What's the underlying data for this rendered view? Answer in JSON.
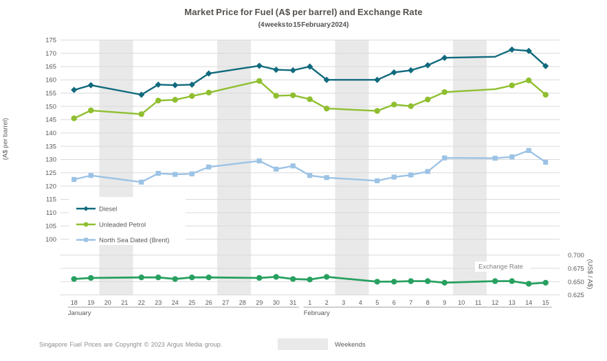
{
  "footer": {
    "copyright": "Singapore Fuel Prices are Copyright © 2023 Argus Media group.",
    "weekends_label": "Weekends",
    "weekend_swatch_color": "#e9e9e9"
  },
  "chart_data": {
    "type": "line",
    "title": "Market Price for Fuel (A$ per barrel) and Exchange Rate",
    "subtitle": "(4 weeks to 15 February 2024)",
    "grid": true,
    "weekend_band_color": "#e9e9e9",
    "gridline_color": "#d9d9d9",
    "axis_text_color": "#595959",
    "annotation_exchange_rate": "Exchange Rate",
    "months": [
      {
        "name": "January",
        "days": [
          18,
          19,
          20,
          21,
          22,
          23,
          24,
          25,
          26,
          27,
          28,
          29,
          30,
          31
        ],
        "weekend_days": [
          20,
          21,
          27,
          28
        ]
      },
      {
        "name": "February",
        "days": [
          1,
          2,
          3,
          4,
          5,
          6,
          7,
          8,
          9,
          10,
          11,
          12,
          13,
          14,
          15
        ],
        "weekend_days": [
          3,
          4,
          10,
          11
        ]
      }
    ],
    "y_left": {
      "label": "(A$ per barrel)",
      "min": 100,
      "max": 175,
      "step": 5,
      "ticks": [
        175,
        170,
        165,
        160,
        155,
        150,
        145,
        140,
        135,
        130,
        125,
        120,
        115,
        110,
        105,
        100
      ]
    },
    "y_right": {
      "label": "(US$ / A$)",
      "min": 0.625,
      "max": 0.7,
      "step": 0.025,
      "ticks": [
        "0.700",
        "0.675",
        "0.650",
        "0.625"
      ]
    },
    "x_days": [
      "Jan 18",
      "Jan 19",
      "Jan 22",
      "Jan 23",
      "Jan 24",
      "Jan 25",
      "Jan 26",
      "Jan 29",
      "Jan 30",
      "Jan 31",
      "Feb 1",
      "Feb 2",
      "Feb 5",
      "Feb 6",
      "Feb 7",
      "Feb 8",
      "Feb 9",
      "Feb 12",
      "Feb 13",
      "Feb 14",
      "Feb 15"
    ],
    "series": [
      {
        "name": "Diesel",
        "color": "#106a7d",
        "marker": "diamond",
        "axis": "left",
        "no_marker_days": [
          "Feb 12"
        ],
        "values": [
          156.2,
          158.0,
          154.4,
          158.2,
          158.0,
          158.2,
          162.4,
          165.3,
          163.8,
          163.6,
          165.0,
          160.0,
          160.0,
          162.8,
          163.6,
          165.5,
          168.3,
          168.7,
          171.4,
          170.9,
          165.2
        ]
      },
      {
        "name": "Unleaded Petrol",
        "color": "#8fbf2f",
        "marker": "circle",
        "axis": "left",
        "no_marker_days": [
          "Feb 12"
        ],
        "values": [
          145.5,
          148.5,
          147.1,
          152.2,
          152.5,
          153.9,
          155.2,
          159.6,
          154.0,
          154.2,
          152.7,
          149.2,
          148.3,
          150.7,
          150.1,
          152.6,
          155.4,
          156.5,
          157.9,
          159.8,
          154.4
        ]
      },
      {
        "name": "North Sea Dated (Brent)",
        "color": "#9cc3e5",
        "marker": "square",
        "axis": "left",
        "no_marker_days": [],
        "values": [
          122.5,
          124.0,
          121.5,
          124.8,
          124.4,
          124.6,
          127.2,
          129.5,
          126.4,
          127.6,
          124.0,
          123.2,
          122.0,
          123.4,
          124.2,
          125.5,
          130.6,
          130.5,
          131.0,
          133.4,
          129.0
        ]
      },
      {
        "name": "Exchange Rate",
        "color": "#27a060",
        "marker": "circle",
        "axis": "right",
        "no_marker_days": [],
        "values": [
          0.655,
          0.657,
          0.658,
          0.658,
          0.655,
          0.658,
          0.658,
          0.657,
          0.659,
          0.655,
          0.654,
          0.659,
          0.65,
          0.65,
          0.651,
          0.651,
          0.648,
          0.651,
          0.651,
          0.646,
          0.648
        ]
      }
    ],
    "legend": {
      "entries": [
        "Diesel",
        "Unleaded Petrol",
        "North Sea Dated (Brent)"
      ],
      "position": "inside-left"
    }
  }
}
